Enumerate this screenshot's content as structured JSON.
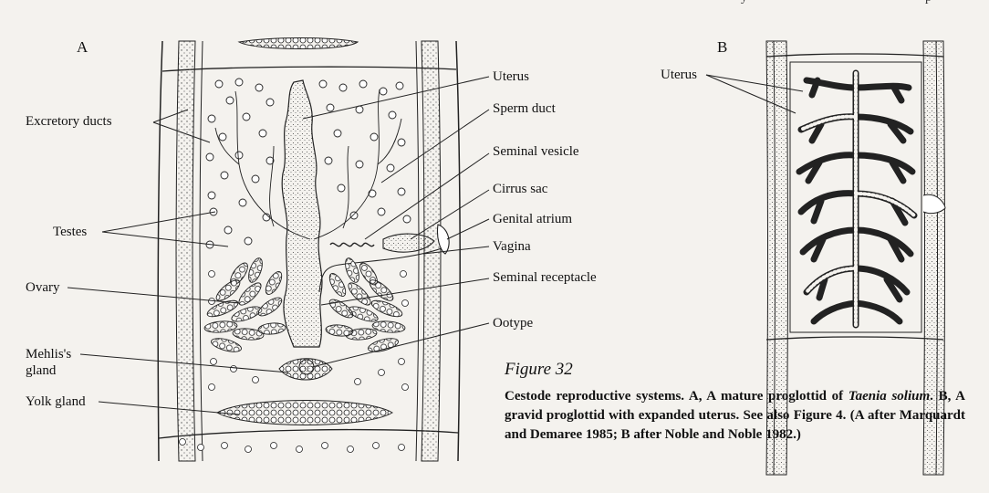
{
  "page_header": {
    "left_fragment": "y",
    "right_fragment": "p"
  },
  "panel_a": {
    "letter": "A",
    "labels": {
      "uterus": "Uterus",
      "sperm_duct": "Sperm duct",
      "seminal_vesicle": "Seminal vesicle",
      "cirrus_sac": "Cirrus sac",
      "genital_atrium": "Genital atrium",
      "vagina": "Vagina",
      "seminal_receptacle": "Seminal receptacle",
      "ootype": "Ootype",
      "excretory_ducts": "Excretory ducts",
      "testes": "Testes",
      "ovary": "Ovary",
      "mehlis_line1": "Mehlis's",
      "mehlis_line2": "gland",
      "yolk_gland": "Yolk gland"
    }
  },
  "panel_b": {
    "letter": "B",
    "labels": {
      "uterus": "Uterus"
    }
  },
  "figure": {
    "title": "Figure 32",
    "caption": {
      "part1": "Cestode reproductive systems. A, A mature proglottid of ",
      "species": "Taenia solium",
      "part2": ". B, A gravid proglottid with expanded uterus. See also Figure 4. (A after Marquardt and Demaree 1985; B after Noble and Noble 1982.)"
    }
  }
}
